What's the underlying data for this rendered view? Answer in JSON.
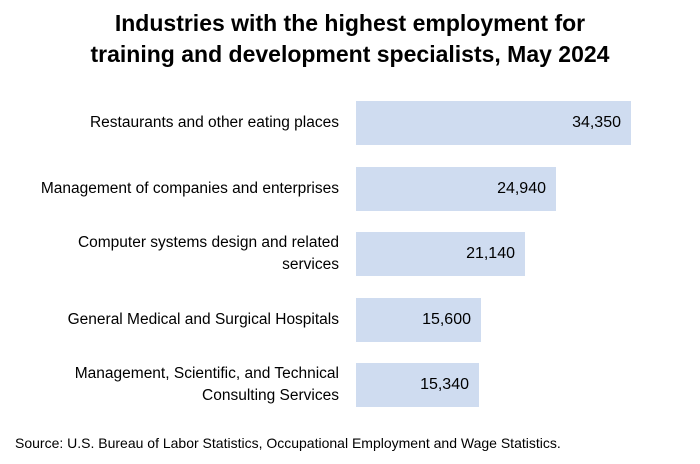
{
  "chart_data": {
    "type": "bar",
    "orientation": "horizontal",
    "title_lines": [
      "Industries with the highest employment for",
      "training and development specialists, May 2024"
    ],
    "categories": [
      [
        "Restaurants and other eating places"
      ],
      [
        "Management of companies and enterprises"
      ],
      [
        "Computer systems design and related",
        "services"
      ],
      [
        "General Medical and Surgical Hospitals"
      ],
      [
        "Management, Scientific, and Technical",
        "Consulting Services"
      ]
    ],
    "values": [
      34350,
      24940,
      21140,
      15600,
      15340
    ],
    "value_labels": [
      "34,350",
      "24,940",
      "21,140",
      "15,600",
      "15,340"
    ],
    "bar_color": "#cfdcf0",
    "grid": false,
    "legend": "none"
  },
  "source": "Source: U.S. Bureau of Labor Statistics, Occupational Employment and Wage Statistics."
}
